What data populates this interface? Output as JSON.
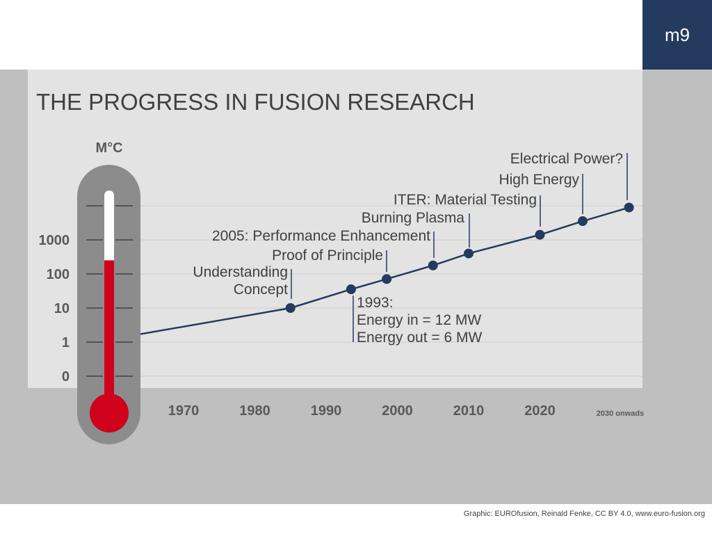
{
  "slide_badge": "m9",
  "title": "THE PROGRESS IN FUSION RESEARCH",
  "credit": "Graphic: EUROfusion, Reinald Fenke, CC BY 4.0, www.euro-fusion.org",
  "colors": {
    "accent_navy": "#243a5e",
    "thermometer_red": "#d0021b",
    "panel_gray": "#e3e3e3",
    "outer_gray": "#bfbfbf"
  },
  "chart_data": {
    "type": "line",
    "title": "THE PROGRESS IN FUSION RESEARCH",
    "ylabel": "M°C",
    "y_ticks": [
      "0",
      "1",
      "10",
      "100",
      "1000"
    ],
    "x_ticks": [
      "1970",
      "1980",
      "1990",
      "2000",
      "2010",
      "2020",
      "2030 onwads"
    ],
    "grid": true,
    "series": [
      {
        "x": [
          1963,
          1985,
          1993.5,
          1998.5,
          2005,
          2010,
          2020,
          2026,
          2032.5
        ],
        "y_level": [
          1.2,
          2.0,
          2.55,
          2.85,
          3.25,
          3.6,
          4.15,
          4.55,
          4.95
        ]
      }
    ],
    "thermometer_fill_level": 3.4,
    "annotations": [
      {
        "point": 1,
        "lines": [
          "Understanding",
          "Concept"
        ]
      },
      {
        "point": 2,
        "lines": [
          "1993:",
          "Energy in = 12 MW",
          "Energy out = 6 MW"
        ]
      },
      {
        "point": 3,
        "lines": [
          "Proof of Principle"
        ]
      },
      {
        "point": 4,
        "lines": [
          "2005: Performance Enhancement"
        ]
      },
      {
        "point": 5,
        "lines": [
          "Burning Plasma"
        ]
      },
      {
        "point": 6,
        "lines": [
          "ITER: Material Testing"
        ]
      },
      {
        "point": 7,
        "lines": [
          "High Energy"
        ]
      },
      {
        "point": 8,
        "lines": [
          "Electrical Power?"
        ]
      }
    ]
  }
}
